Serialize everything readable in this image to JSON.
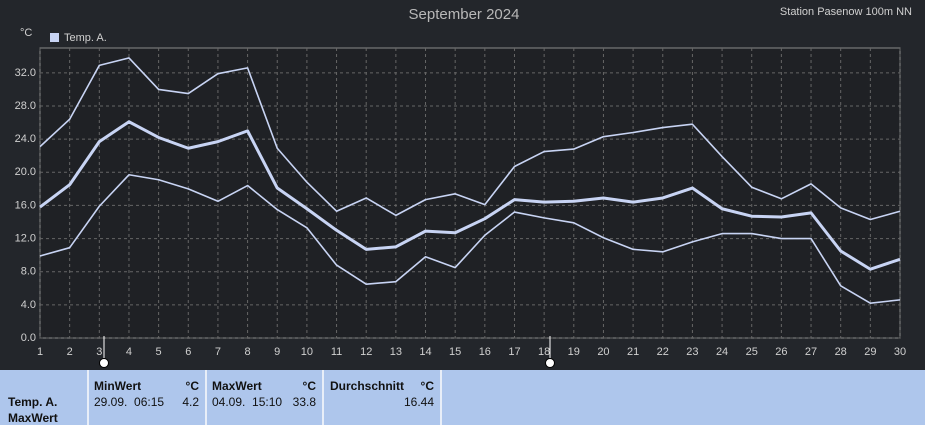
{
  "chart_data": {
    "type": "line",
    "title": "September 2024",
    "station": "Station Pasenow 100m NN",
    "y_unit": "°C",
    "legend": "Temp. A.",
    "x": [
      1,
      2,
      3,
      4,
      5,
      6,
      7,
      8,
      9,
      10,
      11,
      12,
      13,
      14,
      15,
      16,
      17,
      18,
      19,
      20,
      21,
      22,
      23,
      24,
      25,
      26,
      27,
      28,
      29,
      30
    ],
    "series": [
      {
        "color": "#c8d4f4",
        "width": 1.6,
        "values": [
          23.1,
          26.4,
          32.9,
          33.8,
          30.0,
          29.5,
          31.9,
          32.6,
          22.9,
          18.8,
          15.3,
          16.9,
          14.8,
          16.7,
          17.4,
          16.1,
          20.7,
          22.5,
          22.8,
          24.3,
          24.8,
          25.4,
          25.8,
          21.9,
          18.2,
          16.8,
          18.6,
          15.7,
          14.3,
          15.3
        ]
      },
      {
        "color": "#c8d4f4",
        "width": 3,
        "values": [
          15.8,
          18.5,
          23.7,
          26.1,
          24.2,
          22.9,
          23.7,
          25.0,
          18.1,
          15.6,
          13.0,
          10.7,
          11.0,
          12.9,
          12.7,
          14.4,
          16.7,
          16.4,
          16.5,
          16.9,
          16.4,
          16.9,
          18.1,
          15.6,
          14.7,
          14.6,
          15.1,
          10.5,
          8.3,
          9.5
        ]
      },
      {
        "color": "#c8d4f4",
        "width": 1.6,
        "values": [
          9.9,
          10.9,
          15.9,
          19.7,
          19.1,
          18.0,
          16.5,
          18.4,
          15.5,
          13.3,
          8.8,
          6.5,
          6.8,
          9.8,
          8.5,
          12.4,
          15.2,
          14.5,
          13.9,
          12.1,
          10.7,
          10.4,
          11.6,
          12.6,
          12.6,
          12.0,
          12.0,
          6.3,
          4.2,
          4.6
        ]
      }
    ],
    "xlim": [
      1,
      30
    ],
    "xticks": [
      1,
      2,
      3,
      4,
      5,
      6,
      7,
      8,
      9,
      10,
      11,
      12,
      13,
      14,
      15,
      16,
      17,
      18,
      19,
      20,
      21,
      22,
      23,
      24,
      25,
      26,
      27,
      28,
      29,
      30
    ],
    "ylim": [
      0,
      35
    ],
    "yticks": [
      {
        "value": 0,
        "label": "0.0"
      },
      {
        "value": 4,
        "label": "4.0"
      },
      {
        "value": 8,
        "label": "8.0"
      },
      {
        "value": 12,
        "label": "12.0"
      },
      {
        "value": 16,
        "label": "16.0"
      },
      {
        "value": 20,
        "label": "20.0"
      },
      {
        "value": 24,
        "label": "24.0"
      },
      {
        "value": 28,
        "label": "28.0"
      },
      {
        "value": 32,
        "label": "32.0"
      }
    ],
    "grid": true
  },
  "table": {
    "row_label": [
      "Temp. A.",
      "MaxWert"
    ],
    "columns": [
      {
        "title": "MinWert",
        "unit": "°C",
        "time": "29.09.  06:15",
        "value": 4.2
      },
      {
        "title": "MaxWert",
        "unit": "°C",
        "time": "04.09.  15:10",
        "value": 33.8
      },
      {
        "title": "Durchschnitt",
        "unit": "°C",
        "value": 16.44
      }
    ]
  }
}
